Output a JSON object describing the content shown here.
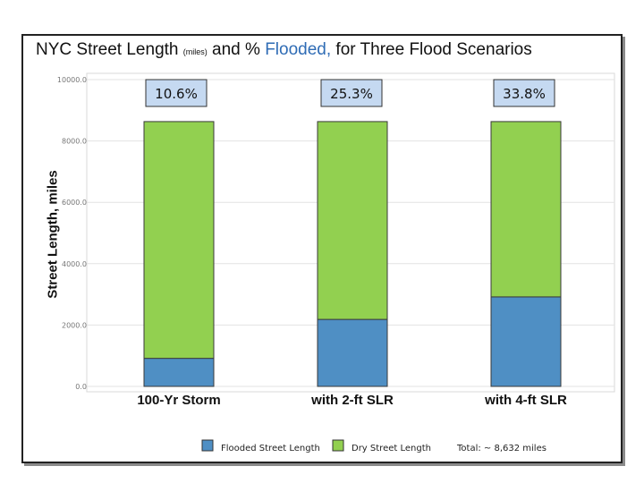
{
  "title": {
    "part1": "NYC Street Length ",
    "small": "(miles)",
    "part2": " and % ",
    "flooded": "Flooded,",
    "part3": "  for Three Flood Scenarios"
  },
  "total_note": "Total: ~ 8,632 miles",
  "colors": {
    "flooded": "#4f8fc4",
    "dry": "#92d050",
    "flooded_text": "#2f6cb5"
  },
  "chart_data": {
    "type": "bar",
    "stacked": true,
    "categories": [
      "100-Yr Storm",
      "with 2-ft SLR",
      "with 4-ft SLR"
    ],
    "series": [
      {
        "name": "Flooded Street Length",
        "values": [
          915,
          2184,
          2918
        ]
      },
      {
        "name": "Dry Street Length",
        "values": [
          7717,
          6448,
          5714
        ]
      }
    ],
    "percent_labels": [
      "10.6%",
      "25.3%",
      "33.8%"
    ],
    "ylabel": "Street Length, miles",
    "ylim": [
      0,
      10000
    ],
    "yticks": [
      0,
      2000,
      4000,
      6000,
      8000,
      10000
    ],
    "ytick_labels": [
      "0.0",
      "2000.0",
      "4000.0",
      "6000.0",
      "8000.0",
      "10000.0"
    ],
    "grid": true,
    "legend_position": "bottom"
  }
}
